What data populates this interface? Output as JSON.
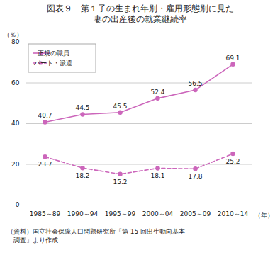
{
  "chart_data": {
    "type": "line",
    "title": "図表９　第１子の生まれ年別・雇用形態別に見た",
    "subtitle": "妻の出産後の就業継続率",
    "categories": [
      "1985～89",
      "1990～94",
      "1995～99",
      "2000～04",
      "2005～09",
      "2010～14"
    ],
    "series": [
      {
        "name": "正規の職員",
        "color": "#cc66bb",
        "values": [
          40.7,
          44.5,
          45.5,
          52.4,
          56.5,
          69.1
        ],
        "line_style": "solid",
        "marker": "circle"
      },
      {
        "name": "パート・派遣",
        "color": "#cc66bb",
        "values": [
          23.7,
          18.2,
          15.2,
          18.1,
          17.8,
          25.2
        ],
        "line_style": "dashed",
        "marker": "circle"
      }
    ],
    "xlabel": "（年）",
    "ylabel": "（％）",
    "ylim": [
      0,
      80
    ],
    "yticks": [
      0,
      20,
      40,
      60,
      80
    ],
    "grid": true,
    "legend": "upper left",
    "data_labels": true,
    "annotations": [
      "（資料）国立社会保障人口問題研究所「第 15 回出生動向基本",
      "　調査」より作成"
    ]
  }
}
